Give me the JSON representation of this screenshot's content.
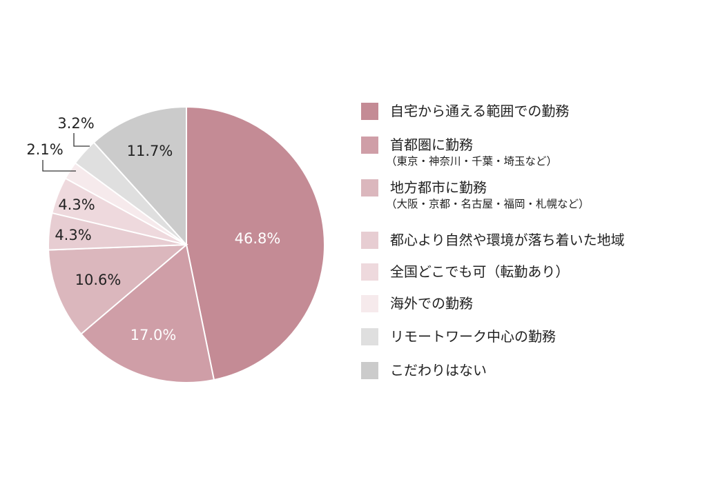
{
  "chart_data": {
    "type": "pie",
    "start": "top",
    "direction": "clockwise",
    "legend_position": "right",
    "slices": [
      {
        "label": "自宅から通える範囲での勤務",
        "sublabel": "",
        "value": 46.8,
        "value_label": "46.8%",
        "color": "#c48b95",
        "label_color": "#ffffff"
      },
      {
        "label": "首都圏に勤務",
        "sublabel": "（東京・神奈川・千葉・埼玉など）",
        "value": 17.0,
        "value_label": "17.0%",
        "color": "#cf9ea7",
        "label_color": "#ffffff"
      },
      {
        "label": "地方都市に勤務",
        "sublabel": "（大阪・京都・名古屋・福岡・札幌など）",
        "value": 10.6,
        "value_label": "10.6%",
        "color": "#dbb7bd",
        "label_color": "#222222"
      },
      {
        "label": "都心より自然や環境が落ち着いた地域",
        "sublabel": "",
        "value": 4.3,
        "value_label": "4.3%",
        "color": "#e7cdd2",
        "label_color": "#222222"
      },
      {
        "label": "全国どこでも可（転勤あり）",
        "sublabel": "",
        "value": 4.3,
        "value_label": "4.3%",
        "color": "#eed9dd",
        "label_color": "#222222"
      },
      {
        "label": "海外での勤務",
        "sublabel": "",
        "value": 2.1,
        "value_label": "2.1%",
        "color": "#f6eaec",
        "label_color": "#222222"
      },
      {
        "label": "リモートワーク中心の勤務",
        "sublabel": "",
        "value": 3.2,
        "value_label": "3.2%",
        "color": "#dfdfdf",
        "label_color": "#222222"
      },
      {
        "label": "こだわりはない",
        "sublabel": "",
        "value": 11.7,
        "value_label": "11.7%",
        "color": "#cbcbcb",
        "label_color": "#222222"
      }
    ]
  }
}
